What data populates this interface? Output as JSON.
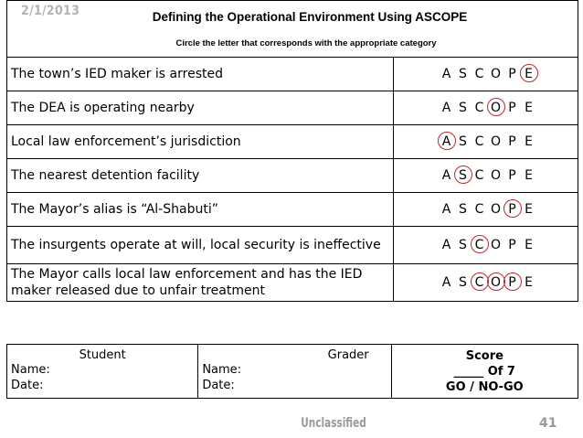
{
  "header": {
    "date": "2/1/2013",
    "title": "Defining the Operational Environment Using ASCOPE",
    "subtitle": "Circle the letter that corresponds with the appropriate category"
  },
  "ascope_letters": [
    "A",
    "S",
    "C",
    "O",
    "P",
    "E"
  ],
  "rows": [
    {
      "question": "The town’s IED maker is arrested",
      "circled": [
        "E"
      ]
    },
    {
      "question": "The DEA is operating nearby",
      "circled": [
        "O"
      ]
    },
    {
      "question": "Local law enforcement’s jurisdiction",
      "circled": [
        "A"
      ]
    },
    {
      "question": "The nearest detention facility",
      "circled": [
        "S"
      ]
    },
    {
      "question": "The Mayor’s alias is “Al-Shabuti”",
      "circled": [
        "P"
      ]
    },
    {
      "question": "The insurgents operate at will, local security is ineffective",
      "circled": [
        "C"
      ]
    },
    {
      "question": "The Mayor calls local law enforcement and has the IED maker released due to unfair treatment",
      "circled": [
        "C",
        "O",
        "P"
      ]
    }
  ],
  "footer": {
    "student_heading": "Student",
    "grader_heading": "Grader",
    "name_label": "Name:",
    "date_label": "Date:",
    "score_heading": "Score",
    "score_line": "_____ Of 7",
    "go_nogo": "GO / NO-GO"
  },
  "classification": "Unclassified",
  "page_number": "41",
  "circle_color": "#c0272d"
}
